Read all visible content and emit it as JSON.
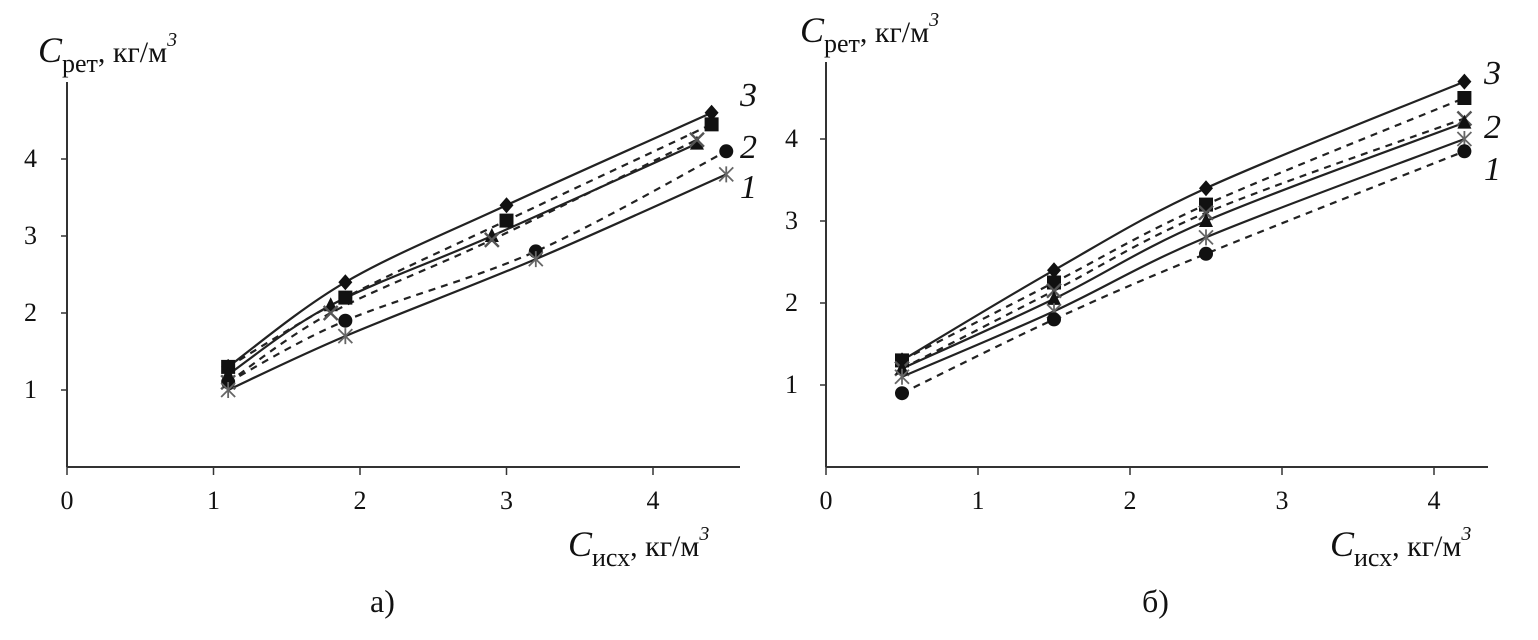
{
  "chart_data": [
    {
      "type": "line",
      "panel_label": "а)",
      "xlabel": {
        "symbol": "C",
        "sub": "исх",
        "unit": ", кг/м",
        "sup": "3"
      },
      "ylabel": {
        "symbol": "C",
        "sub": "рет",
        "unit": ", кг/м",
        "sup": "3"
      },
      "xlim": [
        0,
        4.7
      ],
      "ylim": [
        0,
        5
      ],
      "xticks": [
        "0",
        "1",
        "2",
        "3",
        "4"
      ],
      "yticks": [
        "1",
        "2",
        "3",
        "4"
      ],
      "grid": false,
      "curve_labels": [
        "3",
        "2",
        "1"
      ],
      "series": [
        {
          "style": "solid",
          "marker": "diamond",
          "points": [
            [
              1.1,
              1.3
            ],
            [
              1.9,
              2.4
            ],
            [
              3.0,
              3.4
            ],
            [
              4.4,
              4.6
            ]
          ]
        },
        {
          "style": "dashed",
          "marker": "square",
          "points": [
            [
              1.1,
              1.3
            ],
            [
              1.9,
              2.2
            ],
            [
              3.0,
              3.2
            ],
            [
              4.4,
              4.45
            ]
          ]
        },
        {
          "style": "solid",
          "marker": "triangle",
          "points": [
            [
              1.1,
              1.2
            ],
            [
              1.8,
              2.1
            ],
            [
              2.9,
              3.0
            ],
            [
              4.3,
              4.2
            ]
          ]
        },
        {
          "style": "dashed",
          "marker": "x",
          "points": [
            [
              1.1,
              1.1
            ],
            [
              1.8,
              2.0
            ],
            [
              2.9,
              2.95
            ],
            [
              4.3,
              4.25
            ]
          ]
        },
        {
          "style": "dashed",
          "marker": "circle",
          "points": [
            [
              1.1,
              1.1
            ],
            [
              1.9,
              1.9
            ],
            [
              3.2,
              2.8
            ],
            [
              4.5,
              4.1
            ]
          ]
        },
        {
          "style": "solid",
          "marker": "star",
          "points": [
            [
              1.1,
              1.0
            ],
            [
              1.9,
              1.7
            ],
            [
              3.2,
              2.7
            ],
            [
              4.5,
              3.8
            ]
          ]
        }
      ]
    },
    {
      "type": "line",
      "panel_label": "б)",
      "xlabel": {
        "symbol": "C",
        "sub": "исх",
        "unit": ", кг/м",
        "sup": "3"
      },
      "ylabel": {
        "symbol": "C",
        "sub": "рет",
        "unit": ", кг/м",
        "sup": "3"
      },
      "xlim": [
        0,
        4.5
      ],
      "ylim": [
        0,
        5
      ],
      "xticks": [
        "0",
        "1",
        "2",
        "3",
        "4"
      ],
      "yticks": [
        "1",
        "2",
        "3",
        "4"
      ],
      "grid": false,
      "curve_labels": [
        "3",
        "2",
        "1"
      ],
      "series": [
        {
          "style": "solid",
          "marker": "diamond",
          "points": [
            [
              0.5,
              1.3
            ],
            [
              1.5,
              2.4
            ],
            [
              2.5,
              3.4
            ],
            [
              4.2,
              4.7
            ]
          ]
        },
        {
          "style": "dashed",
          "marker": "square",
          "points": [
            [
              0.5,
              1.3
            ],
            [
              1.5,
              2.25
            ],
            [
              2.5,
              3.2
            ],
            [
              4.2,
              4.5
            ]
          ]
        },
        {
          "style": "dashed",
          "marker": "x",
          "points": [
            [
              0.5,
              1.2
            ],
            [
              1.5,
              2.15
            ],
            [
              2.5,
              3.1
            ],
            [
              4.2,
              4.25
            ]
          ]
        },
        {
          "style": "solid",
          "marker": "triangle",
          "points": [
            [
              0.5,
              1.2
            ],
            [
              1.5,
              2.05
            ],
            [
              2.5,
              3.0
            ],
            [
              4.2,
              4.2
            ]
          ]
        },
        {
          "style": "solid",
          "marker": "star",
          "points": [
            [
              0.5,
              1.1
            ],
            [
              1.5,
              1.9
            ],
            [
              2.5,
              2.8
            ],
            [
              4.2,
              4.0
            ]
          ]
        },
        {
          "style": "dashed",
          "marker": "circle",
          "points": [
            [
              0.5,
              0.9
            ],
            [
              1.5,
              1.8
            ],
            [
              2.5,
              2.6
            ],
            [
              4.2,
              3.85
            ]
          ]
        }
      ]
    }
  ]
}
